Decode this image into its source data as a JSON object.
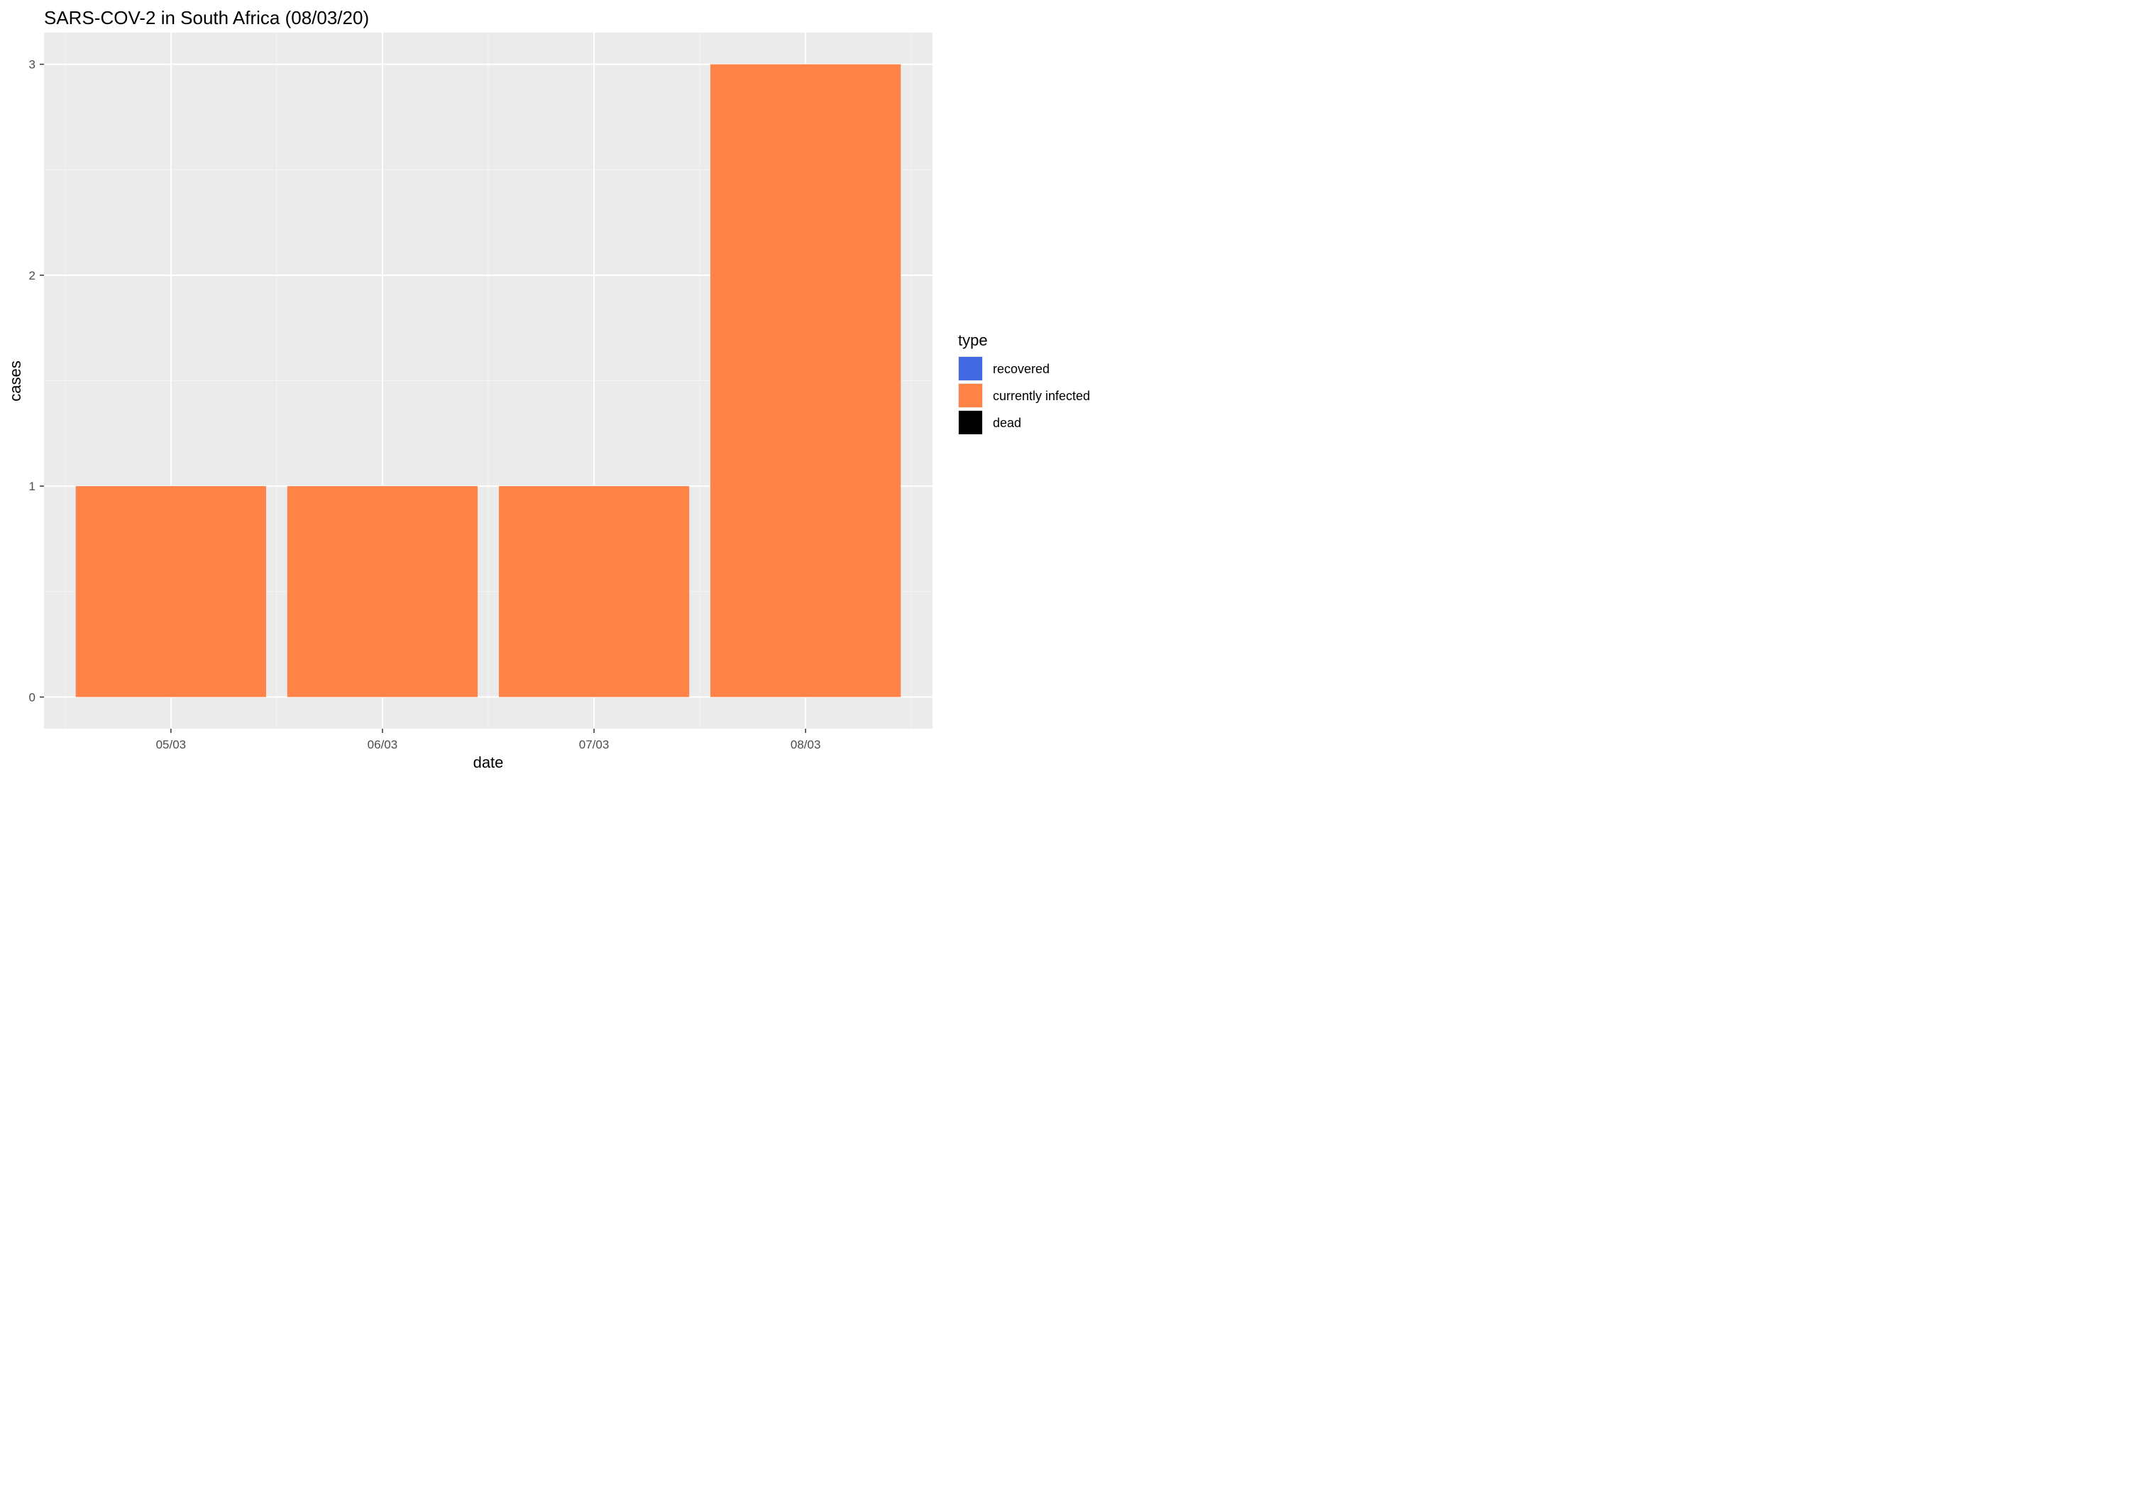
{
  "colors": {
    "panel_background": "#ebebeb",
    "grid_major": "#ffffff",
    "grid_minor": "#f5f5f5",
    "tick_label": "#4d4d4d"
  },
  "legend": {
    "title": "type",
    "items": [
      {
        "label": "recovered",
        "color": "#4169e1"
      },
      {
        "label": "currently infected",
        "color": "#ff8247"
      },
      {
        "label": "dead",
        "color": "#000000"
      }
    ]
  },
  "chart_data": {
    "type": "bar",
    "title": "SARS-COV-2 in South Africa (08/03/20)",
    "xlabel": "date",
    "ylabel": "cases",
    "categories": [
      "05/03",
      "06/03",
      "07/03",
      "08/03"
    ],
    "series": [
      {
        "name": "recovered",
        "color": "#4169e1",
        "values": [
          0,
          0,
          0,
          0
        ]
      },
      {
        "name": "currently infected",
        "color": "#ff8247",
        "values": [
          1,
          1,
          1,
          3
        ]
      },
      {
        "name": "dead",
        "color": "#000000",
        "values": [
          0,
          0,
          0,
          0
        ]
      }
    ],
    "stacked": true,
    "yticks": [
      0,
      1,
      2,
      3
    ],
    "ylim": [
      -0.15,
      3.15
    ],
    "grid": true,
    "legend_position": "right"
  }
}
